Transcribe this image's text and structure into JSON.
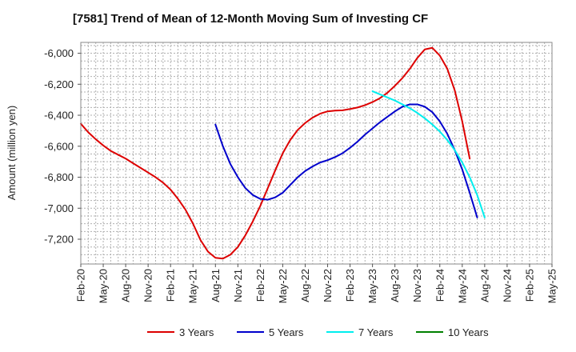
{
  "chart_data": {
    "type": "line",
    "title": "[7581]  Trend of Mean of 12-Month Moving Sum of Investing CF",
    "xlabel": "",
    "ylabel": "Amount (million yen)",
    "ylim": [
      -7360,
      -5930
    ],
    "x_range_months": [
      0,
      63
    ],
    "grid": true,
    "legend_position": "bottom",
    "x_ticks": [
      {
        "label": "Feb-20",
        "m": 0
      },
      {
        "label": "May-20",
        "m": 3
      },
      {
        "label": "Aug-20",
        "m": 6
      },
      {
        "label": "Nov-20",
        "m": 9
      },
      {
        "label": "Feb-21",
        "m": 12
      },
      {
        "label": "May-21",
        "m": 15
      },
      {
        "label": "Aug-21",
        "m": 18
      },
      {
        "label": "Nov-21",
        "m": 21
      },
      {
        "label": "Feb-22",
        "m": 24
      },
      {
        "label": "May-22",
        "m": 27
      },
      {
        "label": "Aug-22",
        "m": 30
      },
      {
        "label": "Nov-22",
        "m": 33
      },
      {
        "label": "Feb-23",
        "m": 36
      },
      {
        "label": "May-23",
        "m": 39
      },
      {
        "label": "Aug-23",
        "m": 42
      },
      {
        "label": "Nov-23",
        "m": 45
      },
      {
        "label": "Feb-24",
        "m": 48
      },
      {
        "label": "May-24",
        "m": 51
      },
      {
        "label": "Aug-24",
        "m": 54
      },
      {
        "label": "Nov-24",
        "m": 57
      },
      {
        "label": "Feb-25",
        "m": 60
      },
      {
        "label": "May-25",
        "m": 63
      }
    ],
    "y_ticks": [
      {
        "label": "-6,000",
        "v": -6000
      },
      {
        "label": "-6,200",
        "v": -6200
      },
      {
        "label": "-6,400",
        "v": -6400
      },
      {
        "label": "-6,600",
        "v": -6600
      },
      {
        "label": "-6,800",
        "v": -6800
      },
      {
        "label": "-7,000",
        "v": -7000
      },
      {
        "label": "-7,200",
        "v": -7200
      }
    ],
    "series": [
      {
        "name": "3 Years",
        "color": "#dd0000",
        "points": [
          [
            0,
            -6455
          ],
          [
            1,
            -6510
          ],
          [
            2,
            -6555
          ],
          [
            3,
            -6595
          ],
          [
            4,
            -6630
          ],
          [
            5,
            -6655
          ],
          [
            6,
            -6680
          ],
          [
            7,
            -6710
          ],
          [
            8,
            -6740
          ],
          [
            9,
            -6770
          ],
          [
            10,
            -6800
          ],
          [
            11,
            -6835
          ],
          [
            12,
            -6880
          ],
          [
            13,
            -6940
          ],
          [
            14,
            -7010
          ],
          [
            15,
            -7100
          ],
          [
            16,
            -7205
          ],
          [
            17,
            -7280
          ],
          [
            18,
            -7320
          ],
          [
            19,
            -7325
          ],
          [
            20,
            -7300
          ],
          [
            21,
            -7250
          ],
          [
            22,
            -7175
          ],
          [
            23,
            -7085
          ],
          [
            24,
            -6985
          ],
          [
            25,
            -6870
          ],
          [
            26,
            -6755
          ],
          [
            27,
            -6645
          ],
          [
            28,
            -6560
          ],
          [
            29,
            -6495
          ],
          [
            30,
            -6450
          ],
          [
            31,
            -6415
          ],
          [
            32,
            -6390
          ],
          [
            33,
            -6375
          ],
          [
            34,
            -6370
          ],
          [
            35,
            -6368
          ],
          [
            36,
            -6360
          ],
          [
            37,
            -6350
          ],
          [
            38,
            -6335
          ],
          [
            39,
            -6315
          ],
          [
            40,
            -6290
          ],
          [
            41,
            -6255
          ],
          [
            42,
            -6210
          ],
          [
            43,
            -6160
          ],
          [
            44,
            -6100
          ],
          [
            45,
            -6030
          ],
          [
            46,
            -5975
          ],
          [
            47,
            -5965
          ],
          [
            48,
            -6015
          ],
          [
            49,
            -6100
          ],
          [
            50,
            -6240
          ],
          [
            51,
            -6440
          ],
          [
            52,
            -6680
          ]
        ]
      },
      {
        "name": "5 Years",
        "color": "#0000cc",
        "points": [
          [
            18,
            -6460
          ],
          [
            19,
            -6600
          ],
          [
            20,
            -6715
          ],
          [
            21,
            -6800
          ],
          [
            22,
            -6870
          ],
          [
            23,
            -6915
          ],
          [
            24,
            -6940
          ],
          [
            25,
            -6945
          ],
          [
            26,
            -6930
          ],
          [
            27,
            -6900
          ],
          [
            28,
            -6850
          ],
          [
            29,
            -6800
          ],
          [
            30,
            -6760
          ],
          [
            31,
            -6730
          ],
          [
            32,
            -6705
          ],
          [
            33,
            -6690
          ],
          [
            34,
            -6670
          ],
          [
            35,
            -6645
          ],
          [
            36,
            -6610
          ],
          [
            37,
            -6570
          ],
          [
            38,
            -6525
          ],
          [
            39,
            -6485
          ],
          [
            40,
            -6445
          ],
          [
            41,
            -6410
          ],
          [
            42,
            -6375
          ],
          [
            43,
            -6345
          ],
          [
            44,
            -6330
          ],
          [
            45,
            -6330
          ],
          [
            46,
            -6345
          ],
          [
            47,
            -6380
          ],
          [
            48,
            -6440
          ],
          [
            49,
            -6520
          ],
          [
            50,
            -6625
          ],
          [
            51,
            -6750
          ],
          [
            52,
            -6900
          ],
          [
            53,
            -7060
          ]
        ]
      },
      {
        "name": "7 Years",
        "color": "#00eeee",
        "points": [
          [
            39,
            -6245
          ],
          [
            40,
            -6265
          ],
          [
            41,
            -6285
          ],
          [
            42,
            -6305
          ],
          [
            43,
            -6330
          ],
          [
            44,
            -6355
          ],
          [
            45,
            -6385
          ],
          [
            46,
            -6420
          ],
          [
            47,
            -6460
          ],
          [
            48,
            -6505
          ],
          [
            49,
            -6560
          ],
          [
            50,
            -6625
          ],
          [
            51,
            -6705
          ],
          [
            52,
            -6800
          ],
          [
            53,
            -6915
          ],
          [
            54,
            -7060
          ]
        ]
      },
      {
        "name": "10 Years",
        "color": "#008000",
        "points": []
      }
    ]
  }
}
